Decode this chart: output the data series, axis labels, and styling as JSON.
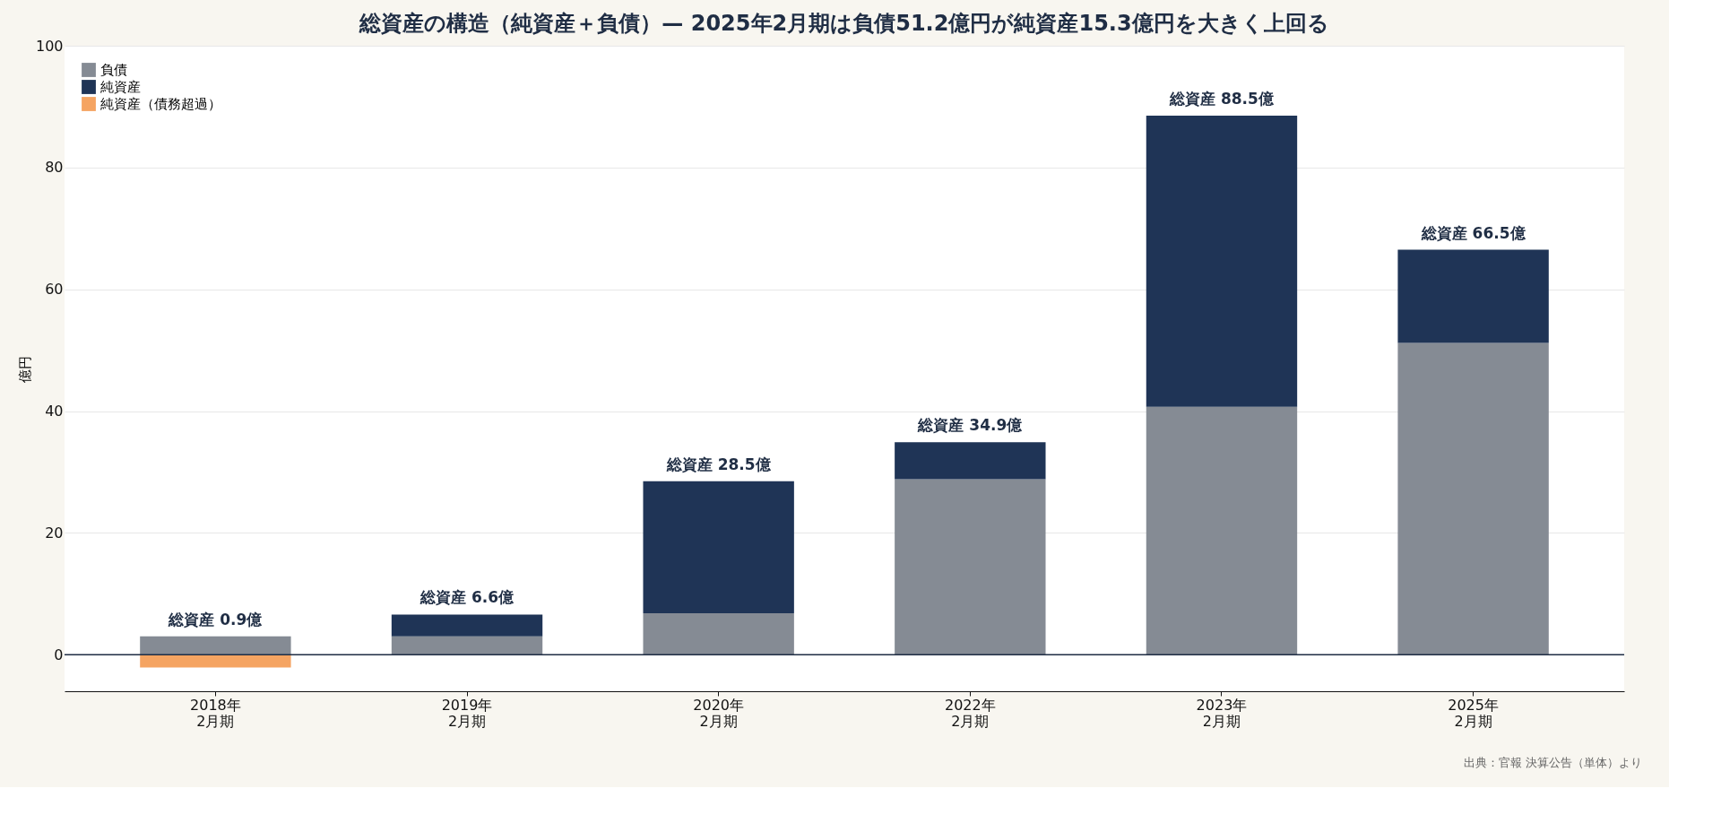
{
  "chart_data": {
    "type": "bar",
    "title": "総資産の構造（純資産＋負債）— 2025年2月期は負債51.2億円が純資産15.3億円を大きく上回る",
    "ylabel": "億円",
    "categories": [
      "2018年\n2月期",
      "2019年\n2月期",
      "2020年\n2月期",
      "2022年\n2月期",
      "2023年\n2月期",
      "2025年\n2月期"
    ],
    "series": [
      {
        "name": "負債",
        "color": "#858b94",
        "values": [
          3.0,
          3.0,
          6.8,
          28.8,
          40.7,
          51.2
        ]
      },
      {
        "name": "純資産",
        "color": "#1f3456",
        "values": [
          null,
          3.6,
          21.7,
          6.1,
          47.8,
          15.3
        ]
      },
      {
        "name": "純資産（債務超過）",
        "color": "#f5a462",
        "values": [
          -2.1,
          null,
          null,
          null,
          null,
          null
        ]
      }
    ],
    "stacked": true,
    "totals": [
      "総資産 0.9億",
      "総資産 6.6億",
      "総資産 28.5億",
      "総資産 34.9億",
      "総資産 88.5億",
      "総資産 66.5億"
    ],
    "ylim": [
      -6,
      100
    ],
    "yticks": [
      0,
      20,
      40,
      60,
      80,
      100
    ],
    "grid": "y",
    "legend": "top left",
    "ref_lines": [
      {
        "axis": "y",
        "value": 0,
        "color": "#1f2d44"
      }
    ],
    "annotations": [
      "出典：官報 決算公告（単体）より"
    ]
  }
}
